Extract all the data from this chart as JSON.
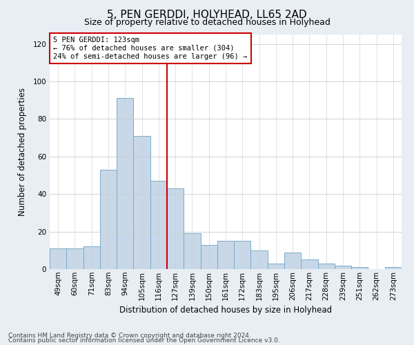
{
  "title": "5, PEN GERDDI, HOLYHEAD, LL65 2AD",
  "subtitle": "Size of property relative to detached houses in Holyhead",
  "xlabel": "Distribution of detached houses by size in Holyhead",
  "ylabel": "Number of detached properties",
  "categories": [
    "49sqm",
    "60sqm",
    "71sqm",
    "83sqm",
    "94sqm",
    "105sqm",
    "116sqm",
    "127sqm",
    "139sqm",
    "150sqm",
    "161sqm",
    "172sqm",
    "183sqm",
    "195sqm",
    "206sqm",
    "217sqm",
    "228sqm",
    "239sqm",
    "251sqm",
    "262sqm",
    "273sqm"
  ],
  "values": [
    11,
    11,
    12,
    53,
    91,
    71,
    47,
    43,
    19,
    13,
    15,
    15,
    10,
    3,
    9,
    5,
    3,
    2,
    1,
    0,
    1
  ],
  "bar_color": "#c8d8e8",
  "bar_edge_color": "#7aaac8",
  "vline_x_idx": 6,
  "vline_color": "#cc0000",
  "annotation_line1": "5 PEN GERDDI: 123sqm",
  "annotation_line2": "← 76% of detached houses are smaller (304)",
  "annotation_line3": "24% of semi-detached houses are larger (96) →",
  "annotation_box_facecolor": "#ffffff",
  "annotation_box_edgecolor": "#cc0000",
  "ylim": [
    0,
    125
  ],
  "yticks": [
    0,
    20,
    40,
    60,
    80,
    100,
    120
  ],
  "footer1": "Contains HM Land Registry data © Crown copyright and database right 2024.",
  "footer2": "Contains public sector information licensed under the Open Government Licence v3.0.",
  "bg_color": "#e8eef4",
  "plot_bg_color": "#ffffff",
  "grid_color": "#cccccc",
  "title_fontsize": 11,
  "subtitle_fontsize": 9,
  "ylabel_fontsize": 8.5,
  "xlabel_fontsize": 8.5,
  "tick_fontsize": 7.5,
  "annotation_fontsize": 7.5,
  "footer_fontsize": 6.5
}
